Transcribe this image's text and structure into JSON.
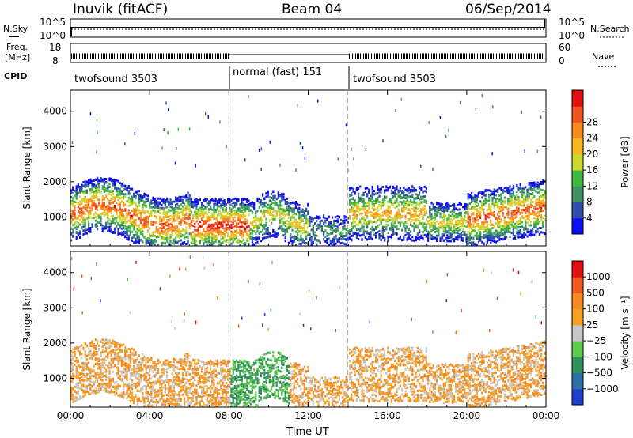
{
  "header": {
    "station": "Inuvik (fitACF)",
    "beam": "Beam 04",
    "date": "06/Sep/2014"
  },
  "strip_labels": {
    "nsky": "N.Sky",
    "nsearch": "N.Search",
    "nave": "Nave",
    "freq_line1": "Freq.",
    "freq_line2": "[MHz]",
    "cpid": "CPID",
    "noise_ticks_left": [
      "10^5",
      "10^0"
    ],
    "noise_ticks_right": [
      "10^5",
      "10^0"
    ],
    "freq_ticks": [
      "18",
      "8"
    ],
    "nave_ticks": [
      "60",
      "0"
    ]
  },
  "cpid_segments": [
    {
      "label": "twofsound 3503",
      "start_hour": 0,
      "end_hour": 8
    },
    {
      "label": "normal (fast) 151",
      "start_hour": 8,
      "end_hour": 14
    },
    {
      "label": "twofsound 3503",
      "start_hour": 14,
      "end_hour": 24
    }
  ],
  "chart_data": [
    {
      "type": "heatmap",
      "name": "power",
      "ylabel": "Slant Range [km]",
      "ylim": [
        180,
        4600
      ],
      "y_ticks": [
        "1000",
        "2000",
        "3000",
        "4000"
      ],
      "x_ticks": [
        "00:00",
        "04:00",
        "08:00",
        "12:00",
        "16:00",
        "20:00",
        "00:00"
      ],
      "colorbar_label": "Power [dB]",
      "colorbar_ticks": [
        "4",
        "8",
        "12",
        "16",
        "20",
        "24",
        "28"
      ],
      "colorbar_colors": [
        "#0d0df0",
        "#2f4fa8",
        "#3f8f62",
        "#3fb83f",
        "#c8d830",
        "#f5b820",
        "#f58a20",
        "#ef5320",
        "#e01010"
      ],
      "vertical_markers_hour": [
        8,
        14
      ]
    },
    {
      "type": "heatmap",
      "name": "velocity",
      "ylabel": "Slant Range [km]",
      "ylim": [
        180,
        4600
      ],
      "y_ticks": [
        "1000",
        "2000",
        "3000",
        "4000"
      ],
      "x_ticks": [
        "00:00",
        "04:00",
        "08:00",
        "12:00",
        "16:00",
        "20:00",
        "00:00"
      ],
      "xlabel": "Time UT",
      "colorbar_label": "Velocity [m s⁻¹]",
      "colorbar_ticks": [
        "1000",
        "500",
        "100",
        "25",
        "−25",
        "−100",
        "−500",
        "−1000"
      ],
      "colorbar_colors": [
        "#1f3fc8",
        "#2f6fa8",
        "#2f8f5f",
        "#5fc84f",
        "#c8c8c8",
        "#f5a020",
        "#f58a20",
        "#f05a20",
        "#e01010"
      ],
      "vertical_markers_hour": [
        8,
        14
      ]
    }
  ]
}
